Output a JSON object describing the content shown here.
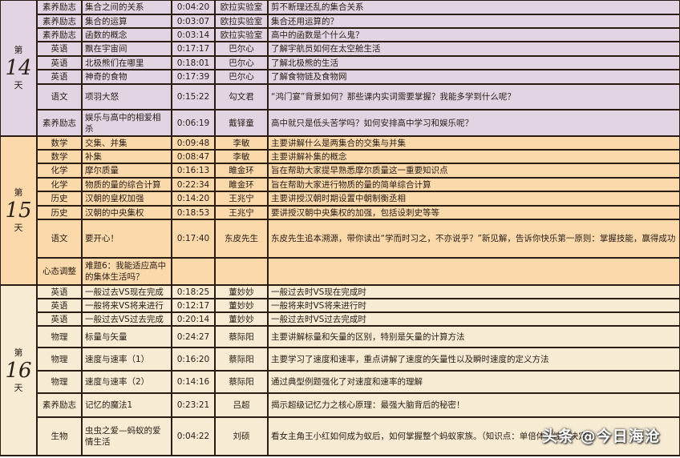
{
  "groups": [
    {
      "day_prefix": "第",
      "day_number": "14",
      "day_suffix": "天",
      "color": "#e3d4e4",
      "rows": [
        {
          "subject": "素养励志",
          "title": "集合之间的关系",
          "duration": "0:04:20",
          "teacher": "欧拉实验室",
          "description": "剪不断理还乱的集合关系",
          "h": 18
        },
        {
          "subject": "素养励志",
          "title": "集合的运算",
          "duration": "0:03:07",
          "teacher": "欧拉实验室",
          "description": "集合还用运算的？",
          "h": 17
        },
        {
          "subject": "素养励志",
          "title": "函数的概念",
          "duration": "0:03:14",
          "teacher": "欧拉实验室",
          "description": "高中的函数是个什么鬼？",
          "h": 17
        },
        {
          "subject": "英语",
          "title": "飘在宇宙间",
          "duration": "0:17:17",
          "teacher": "巴尔心",
          "description": "了解宇航员如何在太空舱生活",
          "h": 18
        },
        {
          "subject": "英语",
          "title": "北极熊们在哪里",
          "duration": "0:18:01",
          "teacher": "巴尔心",
          "description": "了解北极熊的生活",
          "h": 17
        },
        {
          "subject": "英语",
          "title": "神奇的食物",
          "duration": "0:17:39",
          "teacher": "巴尔心",
          "description": "了解食物链及食物网",
          "h": 18
        },
        {
          "subject": "语文",
          "title": "项羽大怒",
          "duration": "0:15:22",
          "teacher": "勾文君",
          "description": "“鸿门宴”背景如何？那些课内实词需要掌握？我能多学到什么呢？",
          "h": 32
        },
        {
          "subject": "素养励志",
          "title": "娱乐与高中的相爱相杀",
          "duration": "0:06:19",
          "teacher": "戴铎童",
          "description": "高中就只是低头苦学吗？如何安排高中学习和娱乐呢？",
          "h": 33
        }
      ]
    },
    {
      "day_prefix": "第",
      "day_number": "15",
      "day_suffix": "天",
      "color": "#fcd9ab",
      "rows": [
        {
          "subject": "数学",
          "title": "交集、并集",
          "duration": "0:09:48",
          "teacher": "李敏",
          "description": "主要讲解什么是两集合的交集与并集",
          "h": 17
        },
        {
          "subject": "数学",
          "title": "补集",
          "duration": "0:08:47",
          "teacher": "李敏",
          "description": "主要讲解补集的概念",
          "h": 17
        },
        {
          "subject": "化学",
          "title": "摩尔质量",
          "duration": "0:16:13",
          "teacher": "雎金环",
          "description": "旨在帮助大家提早熟悉摩尔质量这一重要知识点",
          "h": 18
        },
        {
          "subject": "化学",
          "title": "物质的量的综合计算",
          "duration": "0:22:34",
          "teacher": "雎金环",
          "description": "旨在帮助大家进行物质的量的简单综合计算",
          "h": 17
        },
        {
          "subject": "历史",
          "title": "汉朝的皇权加强",
          "duration": "0:14:20",
          "teacher": "王兆宁",
          "description": "主要讲授汉朝时期设置中朝制衡丞相",
          "h": 18
        },
        {
          "subject": "历史",
          "title": "汉朝的中央集权",
          "duration": "0:18:53",
          "teacher": "王兆宁",
          "description": "要讲授汉朝中央集权的加强，包括设刺史等等",
          "h": 17
        },
        {
          "subject": "语文",
          "title": "要开心！",
          "duration": "0:17:40",
          "teacher": "东皮先生",
          "description": "东皮先生追本溯源，带你读出“学而时习之，不亦说乎？”新见解，告诉你快乐第一原则：掌握技能，赢得成功",
          "h": 48
        },
        {
          "subject": "心态调整",
          "title": "难题6：我能适应高中的集体生活吗？",
          "duration": "",
          "teacher": "",
          "description": "",
          "h": 34
        }
      ]
    },
    {
      "day_prefix": "第",
      "day_number": "16",
      "day_suffix": "天",
      "color": "#f7ebd3",
      "rows": [
        {
          "subject": "英语",
          "title": "一般过去VS现在完成",
          "duration": "0:18:25",
          "teacher": "董妙妙",
          "description": "一般过去时VS现在完成时",
          "h": 17
        },
        {
          "subject": "英语",
          "title": "一般将来VS将来进行",
          "duration": "0:12:17",
          "teacher": "董妙妙",
          "description": "一般将来时VS将来进行时",
          "h": 17
        },
        {
          "subject": "英语",
          "title": "一般过去VS过去完成",
          "duration": "0:20:14",
          "teacher": "董妙妙",
          "description": "一般过去时VS过去完成时",
          "h": 17
        },
        {
          "subject": "物理",
          "title": "标量与矢量",
          "duration": "0:24:27",
          "teacher": "蔡际阳",
          "description": "主要讲解标量和矢量的区别，特别是矢量的计算方法",
          "h": 27
        },
        {
          "subject": "物理",
          "title": "速度与速率（1）",
          "duration": "0:16:20",
          "teacher": "蔡际阳",
          "description": "主要学习了速度和速率，重点讲解了速度的矢量性以及瞬时速度的定义方法",
          "h": 29
        },
        {
          "subject": "物理",
          "title": "速度与速率（2）",
          "duration": "0:14:16",
          "teacher": "蔡际阳",
          "description": "通过典型例题强化了对速度和速率的理解",
          "h": 28
        },
        {
          "subject": "素养励志",
          "title": "记忆的魔法1",
          "duration": "0:23:21",
          "teacher": "吕超",
          "description": "揭示超级记忆力之核心原理：最强大脑背后的秘密！",
          "h": 30
        },
        {
          "subject": "生物",
          "title": "虫虫之爱—蚂蚁的爱情生活",
          "duration": "0:04:22",
          "teacher": "刘硕",
          "description": "看女主角王小红如何成为蚁后，如何掌握整个蚂蚁家族。（知识点：单倍体与性别决定）",
          "h": 48
        }
      ]
    }
  ],
  "watermark": "头条 @今日海沧"
}
